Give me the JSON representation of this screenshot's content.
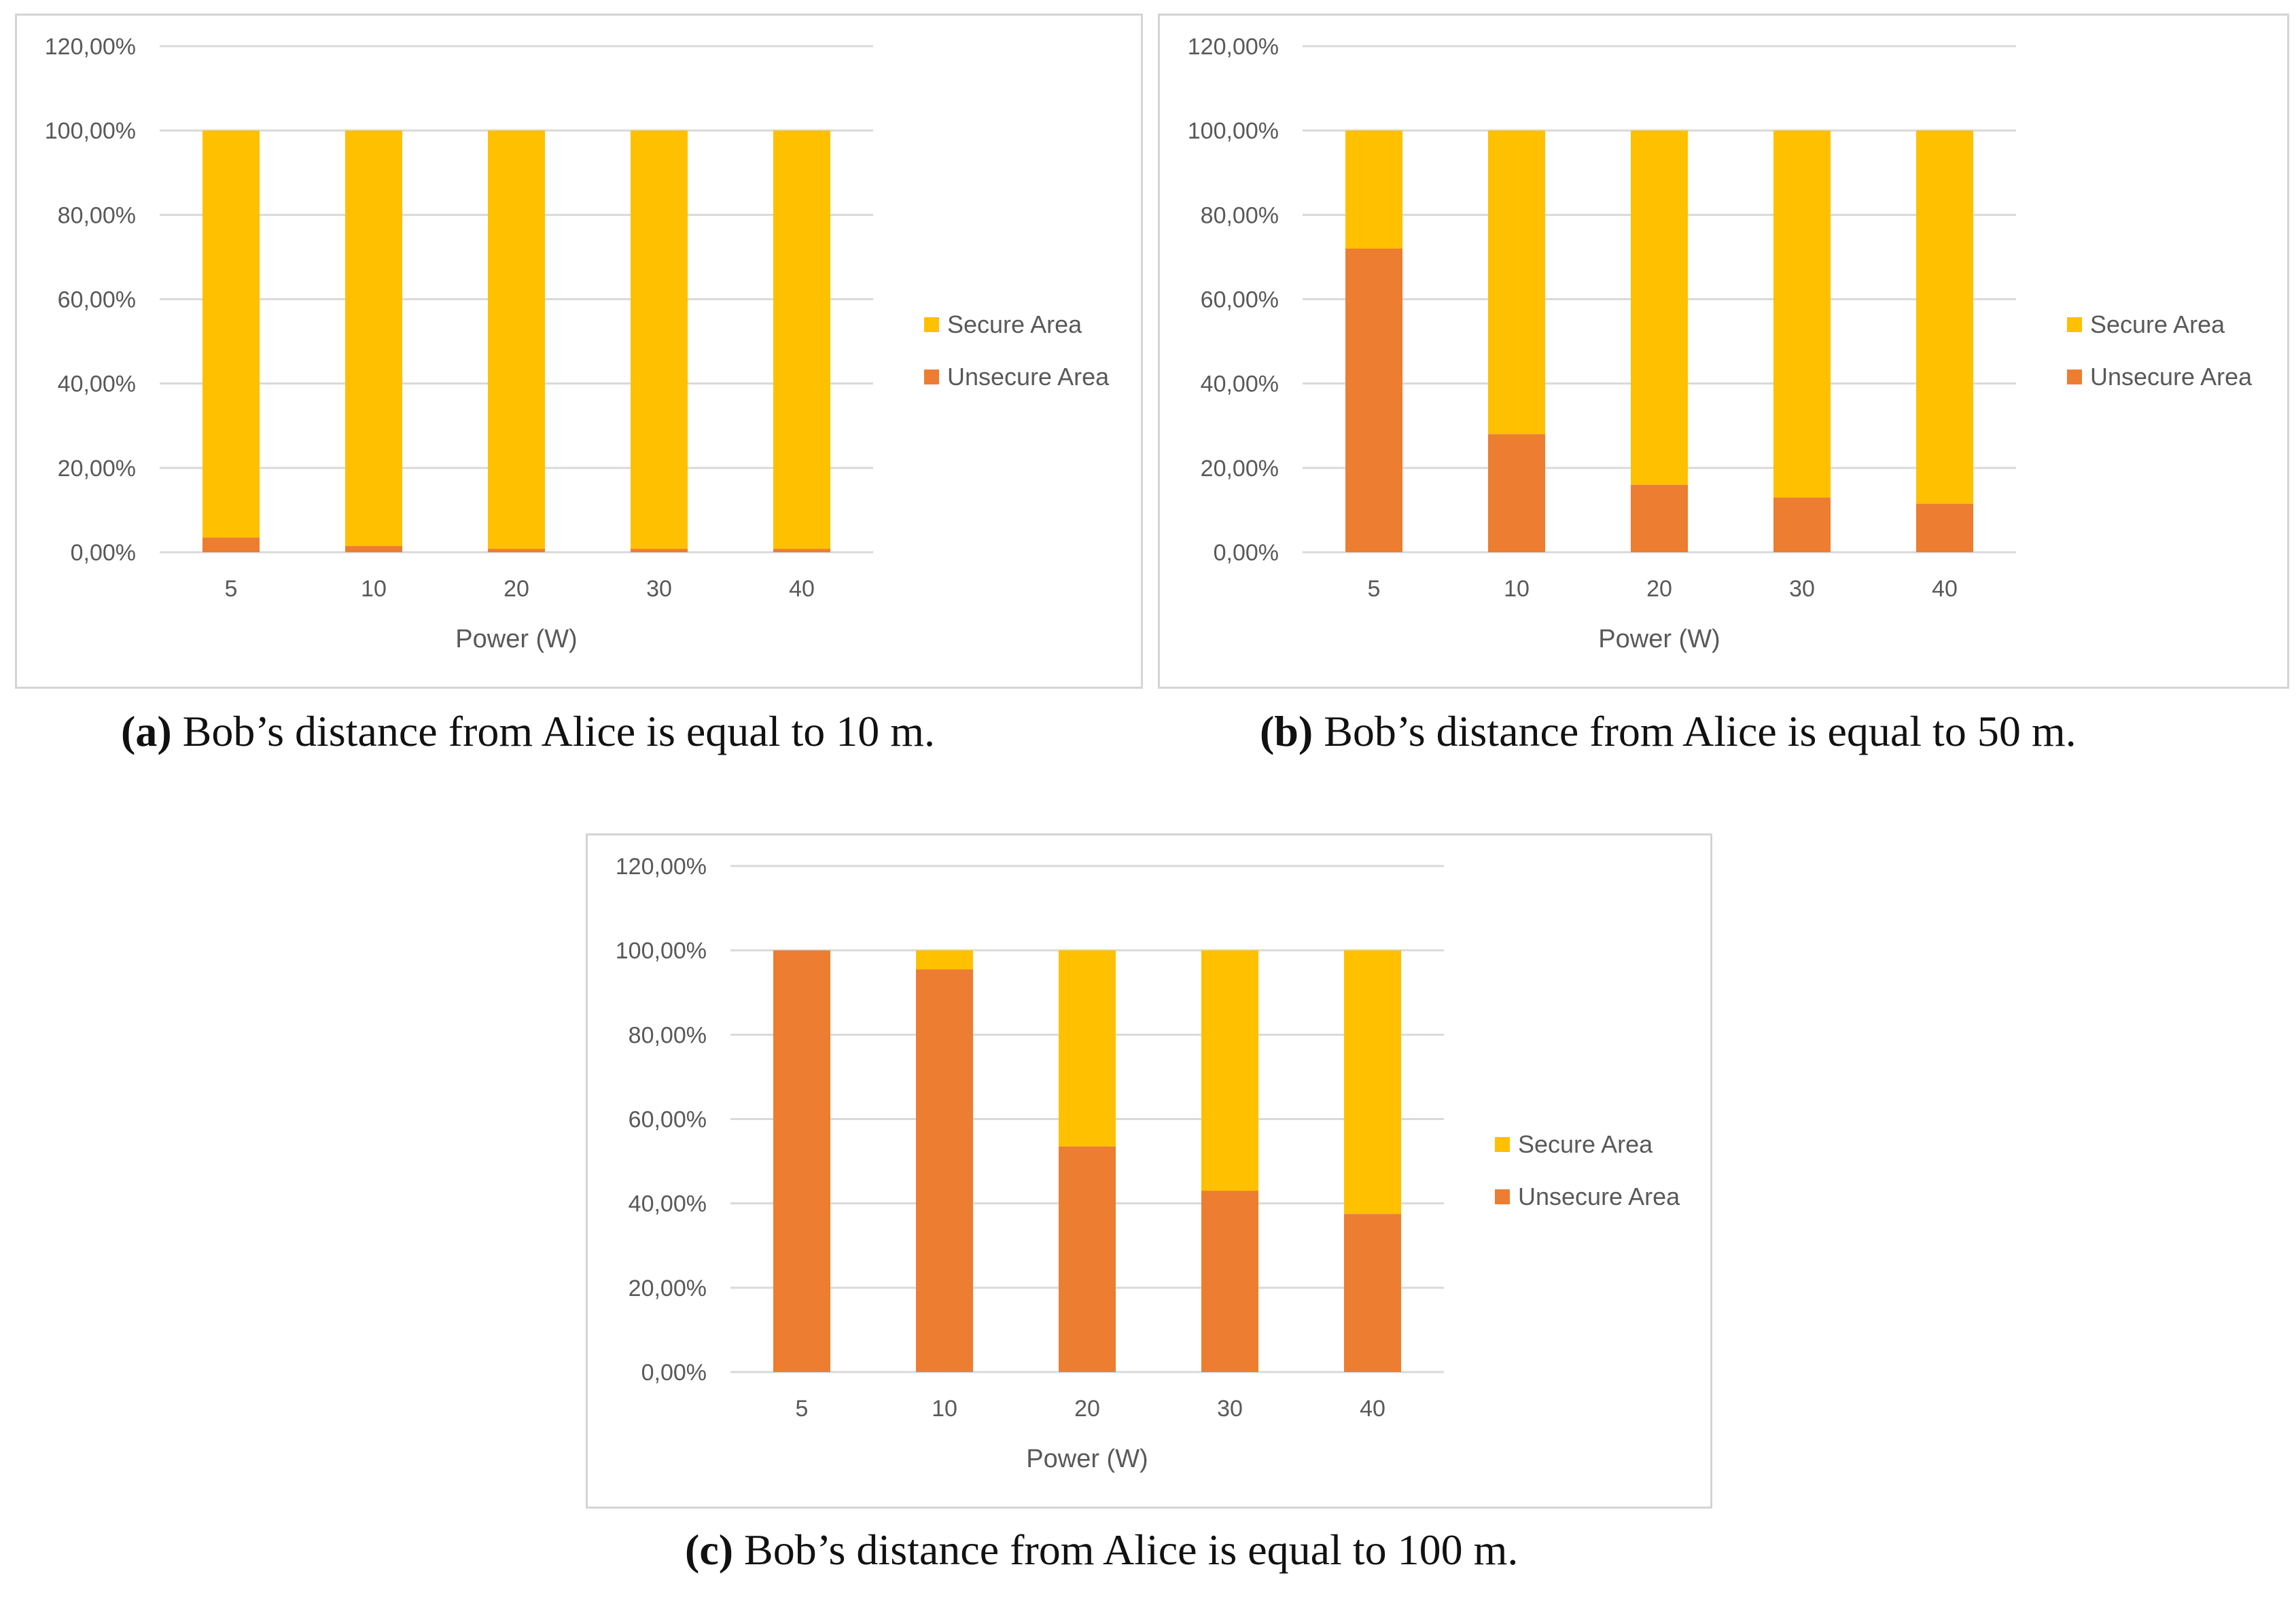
{
  "colors": {
    "secure": "#FFC000",
    "unsecure": "#ED7D31",
    "grid": "#d9d9d9",
    "text": "#595959",
    "frame": "#d4d4d4"
  },
  "chart_data": [
    {
      "id": "a",
      "type": "bar",
      "stacked": true,
      "categories": [
        "5",
        "10",
        "20",
        "30",
        "40"
      ],
      "series": [
        {
          "name": "Unsecure Area",
          "values": [
            3.5,
            1.5,
            0.8,
            0.8,
            0.8
          ]
        },
        {
          "name": "Secure Area",
          "values": [
            96.5,
            98.5,
            99.2,
            99.2,
            99.2
          ]
        }
      ],
      "yticks": [
        "0,00%",
        "20,00%",
        "40,00%",
        "60,00%",
        "80,00%",
        "100,00%",
        "120,00%"
      ],
      "ylim": [
        0,
        120
      ],
      "xlabel": "Power (W)",
      "ylabel": "",
      "legend": [
        "Secure Area",
        "Unsecure Area"
      ],
      "legend_position": "right",
      "grid": true,
      "caption_tag": "(a)",
      "caption_text": " Bob’s distance from Alice is equal to 10 m."
    },
    {
      "id": "b",
      "type": "bar",
      "stacked": true,
      "categories": [
        "5",
        "10",
        "20",
        "30",
        "40"
      ],
      "series": [
        {
          "name": "Unsecure Area",
          "values": [
            72,
            28,
            16,
            13,
            11.5
          ]
        },
        {
          "name": "Secure Area",
          "values": [
            28,
            72,
            84,
            87,
            88.5
          ]
        }
      ],
      "yticks": [
        "0,00%",
        "20,00%",
        "40,00%",
        "60,00%",
        "80,00%",
        "100,00%",
        "120,00%"
      ],
      "ylim": [
        0,
        120
      ],
      "xlabel": "Power (W)",
      "ylabel": "",
      "legend": [
        "Secure Area",
        "Unsecure Area"
      ],
      "legend_position": "right",
      "grid": true,
      "caption_tag": "(b)",
      "caption_text": " Bob’s distance from Alice is equal to 50 m."
    },
    {
      "id": "c",
      "type": "bar",
      "stacked": true,
      "categories": [
        "5",
        "10",
        "20",
        "30",
        "40"
      ],
      "series": [
        {
          "name": "Unsecure Area",
          "values": [
            100,
            95.5,
            53.5,
            43,
            37.5
          ]
        },
        {
          "name": "Secure Area",
          "values": [
            0,
            4.5,
            46.5,
            57,
            62.5
          ]
        }
      ],
      "yticks": [
        "0,00%",
        "20,00%",
        "40,00%",
        "60,00%",
        "80,00%",
        "100,00%",
        "120,00%"
      ],
      "ylim": [
        0,
        120
      ],
      "xlabel": "Power (W)",
      "ylabel": "",
      "legend": [
        "Secure Area",
        "Unsecure Area"
      ],
      "legend_position": "right",
      "grid": true,
      "caption_tag": "(c)",
      "caption_text": " Bob’s distance from Alice is equal to 100 m."
    }
  ]
}
